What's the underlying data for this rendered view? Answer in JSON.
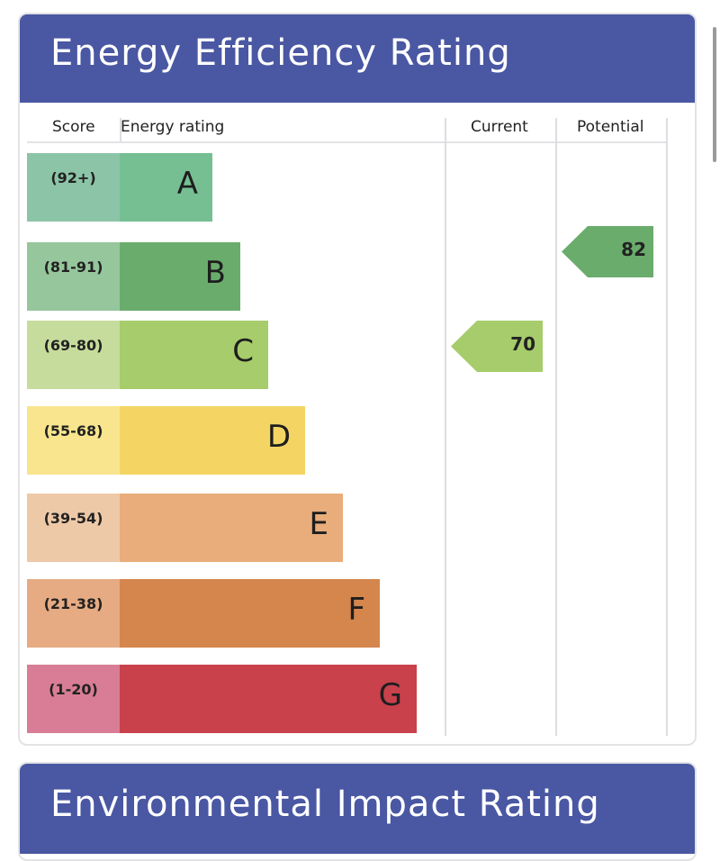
{
  "chart_data": {
    "type": "bar",
    "title": "Energy Efficiency Rating",
    "columns": {
      "score": "Score",
      "rating": "Energy rating",
      "current": "Current",
      "potential": "Potential"
    },
    "bands": [
      {
        "letter": "A",
        "range": "(92+)",
        "score_color": "#8cc4a8",
        "bar_color": "#76bf93"
      },
      {
        "letter": "B",
        "range": "(81-91)",
        "score_color": "#96c69c",
        "bar_color": "#6aac6c"
      },
      {
        "letter": "C",
        "range": "(69-80)",
        "score_color": "#c6dc9c",
        "bar_color": "#a6cc6b"
      },
      {
        "letter": "D",
        "range": "(55-68)",
        "score_color": "#f9e58e",
        "bar_color": "#f4d564"
      },
      {
        "letter": "E",
        "range": "(39-54)",
        "score_color": "#eec9a7",
        "bar_color": "#e8ad7a"
      },
      {
        "letter": "F",
        "range": "(21-38)",
        "score_color": "#e6ab82",
        "bar_color": "#d5864d"
      },
      {
        "letter": "G",
        "range": "(1-20)",
        "score_color": "#d87d95",
        "bar_color": "#c8414b"
      }
    ],
    "current": {
      "value": 70,
      "band": "C",
      "color": "#a6cc6b"
    },
    "potential": {
      "value": 82,
      "band": "B",
      "color": "#6aac6c"
    }
  },
  "second_card": {
    "title": "Environmental Impact Rating"
  },
  "colors": {
    "header": "#4a57a3"
  }
}
